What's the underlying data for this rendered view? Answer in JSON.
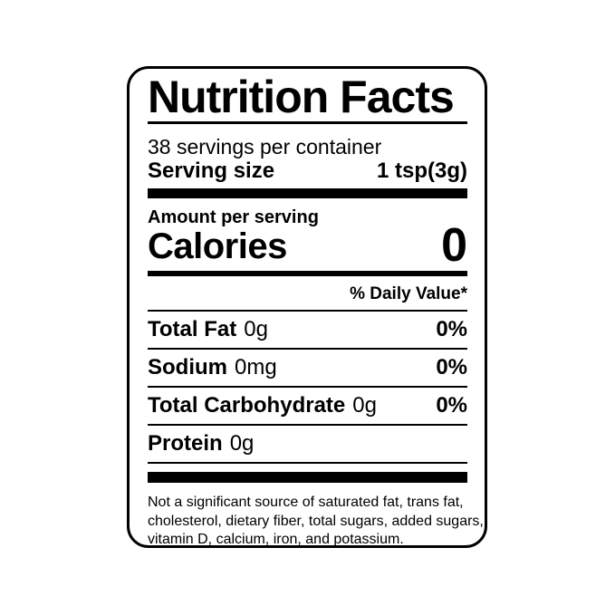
{
  "label": {
    "title": "Nutrition Facts",
    "servings_per_container": "38 servings per container",
    "serving_size": {
      "label": "Serving size",
      "value": "1 tsp(3g)"
    },
    "amount_per_serving": "Amount per serving",
    "calories": {
      "label": "Calories",
      "value": "0"
    },
    "daily_value_header": "% Daily Value*",
    "nutrients": [
      {
        "name": "Total Fat",
        "amount": "0g",
        "daily_value": "0%"
      },
      {
        "name": "Sodium",
        "amount": "0mg",
        "daily_value": "0%"
      },
      {
        "name": "Total Carbohydrate",
        "amount": "0g",
        "daily_value": "0%"
      },
      {
        "name": "Protein",
        "amount": "0g",
        "daily_value": ""
      }
    ],
    "footnote_lines": [
      "Not a significant source of saturated fat, trans fat,",
      "cholesterol, dietary fiber, total sugars, added sugars,",
      "vitamin D, calcium, iron, and potassium."
    ],
    "colors": {
      "text": "#000000",
      "background": "#ffffff",
      "border": "#000000"
    }
  }
}
